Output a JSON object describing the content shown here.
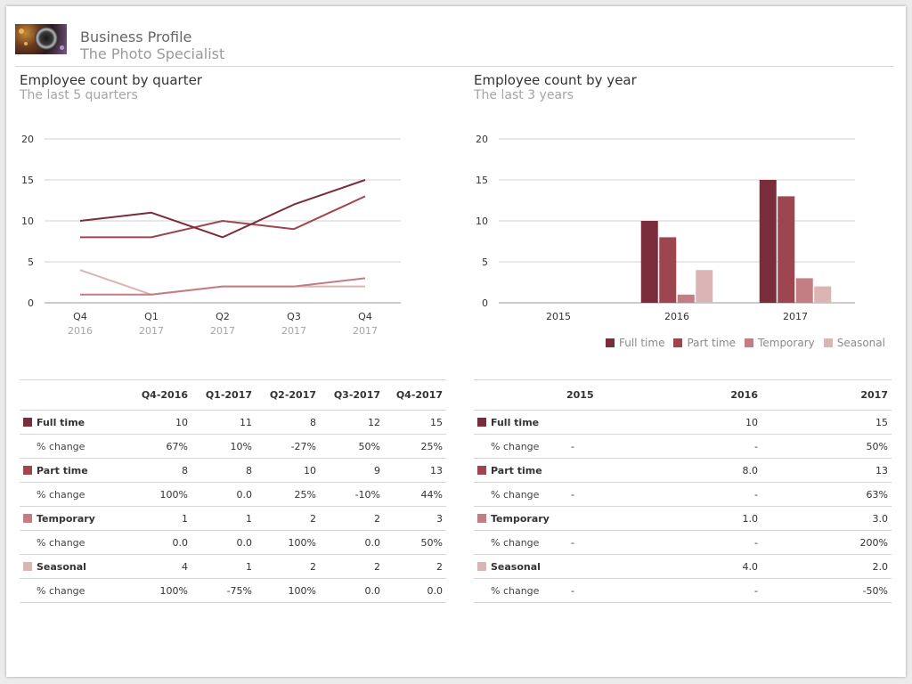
{
  "header": {
    "title": "Business Profile",
    "subtitle": "The Photo Specialist"
  },
  "colors": {
    "full_time": "#7b2c3b",
    "part_time": "#9e4650",
    "temporary": "#c27e82",
    "seasonal": "#dbb4b4",
    "grid": "#d0d0d0",
    "tick_text": "#333333",
    "tick_sub": "#a5a5a5"
  },
  "quarter_section": {
    "title": "Employee count by quarter",
    "subtitle": "The last 5 quarters"
  },
  "year_section": {
    "title": "Employee count by year",
    "subtitle": "The last 3 years"
  },
  "chart_data": [
    {
      "type": "line",
      "title": "Employee count by quarter",
      "subtitle": "The last 5 quarters",
      "categories": [
        "Q4",
        "Q1",
        "Q2",
        "Q3",
        "Q4"
      ],
      "category_years": [
        "2016",
        "2017",
        "2017",
        "2017",
        "2017"
      ],
      "ylim": [
        0,
        20
      ],
      "yticks": [
        0,
        5,
        10,
        15,
        20
      ],
      "grid": true,
      "series": [
        {
          "name": "Full time",
          "color_key": "full_time",
          "values": [
            10,
            11,
            8,
            12,
            15
          ]
        },
        {
          "name": "Part time",
          "color_key": "part_time",
          "values": [
            8,
            8,
            10,
            9,
            13
          ]
        },
        {
          "name": "Temporary",
          "color_key": "temporary",
          "values": [
            1,
            1,
            2,
            2,
            3
          ]
        },
        {
          "name": "Seasonal",
          "color_key": "seasonal",
          "values": [
            4,
            1,
            2,
            2,
            2
          ]
        }
      ]
    },
    {
      "type": "bar",
      "title": "Employee count by year",
      "subtitle": "The last 3 years",
      "categories": [
        "2015",
        "2016",
        "2017"
      ],
      "ylim": [
        0,
        20
      ],
      "yticks": [
        0,
        5,
        10,
        15,
        20
      ],
      "grid": true,
      "legend": "bottom-right",
      "series": [
        {
          "name": "Full time",
          "color_key": "full_time",
          "values": [
            null,
            10,
            15
          ]
        },
        {
          "name": "Part time",
          "color_key": "part_time",
          "values": [
            null,
            8,
            13
          ]
        },
        {
          "name": "Temporary",
          "color_key": "temporary",
          "values": [
            null,
            1,
            3
          ]
        },
        {
          "name": "Seasonal",
          "color_key": "seasonal",
          "values": [
            null,
            4,
            2
          ]
        }
      ]
    }
  ],
  "quarter_table": {
    "headers": [
      "",
      "Q4-2016",
      "Q1-2017",
      "Q2-2017",
      "Q3-2017",
      "Q4-2017"
    ],
    "rows": [
      {
        "kind": "cat",
        "color_key": "full_time",
        "label": "Full time",
        "cells": [
          "10",
          "11",
          "8",
          "12",
          "15"
        ]
      },
      {
        "kind": "chg",
        "label": "% change",
        "cells": [
          "67%",
          "10%",
          "-27%",
          "50%",
          "25%"
        ]
      },
      {
        "kind": "cat",
        "color_key": "part_time",
        "label": "Part time",
        "cells": [
          "8",
          "8",
          "10",
          "9",
          "13"
        ]
      },
      {
        "kind": "chg",
        "label": "% change",
        "cells": [
          "100%",
          "0.0",
          "25%",
          "-10%",
          "44%"
        ]
      },
      {
        "kind": "cat",
        "color_key": "temporary",
        "label": "Temporary",
        "cells": [
          "1",
          "1",
          "2",
          "2",
          "3"
        ]
      },
      {
        "kind": "chg",
        "label": "% change",
        "cells": [
          "0.0",
          "0.0",
          "100%",
          "0.0",
          "50%"
        ]
      },
      {
        "kind": "cat",
        "color_key": "seasonal",
        "label": "Seasonal",
        "cells": [
          "4",
          "1",
          "2",
          "2",
          "2"
        ]
      },
      {
        "kind": "chg",
        "label": "% change",
        "cells": [
          "100%",
          "-75%",
          "100%",
          "0.0",
          "0.0"
        ]
      }
    ]
  },
  "year_table": {
    "headers": [
      "",
      "2015",
      "2016",
      "2017"
    ],
    "rows": [
      {
        "kind": "cat",
        "color_key": "full_time",
        "label": "Full time",
        "cells": [
          "",
          "10",
          "15"
        ]
      },
      {
        "kind": "chg",
        "label": "% change",
        "cells": [
          "-",
          "-",
          "50%"
        ]
      },
      {
        "kind": "cat",
        "color_key": "part_time",
        "label": "Part time",
        "cells": [
          "",
          "8.0",
          "13"
        ]
      },
      {
        "kind": "chg",
        "label": "% change",
        "cells": [
          "-",
          "-",
          "63%"
        ]
      },
      {
        "kind": "cat",
        "color_key": "temporary",
        "label": "Temporary",
        "cells": [
          "",
          "1.0",
          "3.0"
        ]
      },
      {
        "kind": "chg",
        "label": "% change",
        "cells": [
          "-",
          "-",
          "200%"
        ]
      },
      {
        "kind": "cat",
        "color_key": "seasonal",
        "label": "Seasonal",
        "cells": [
          "",
          "4.0",
          "2.0"
        ]
      },
      {
        "kind": "chg",
        "label": "% change",
        "cells": [
          "-",
          "-",
          "-50%"
        ]
      }
    ]
  }
}
